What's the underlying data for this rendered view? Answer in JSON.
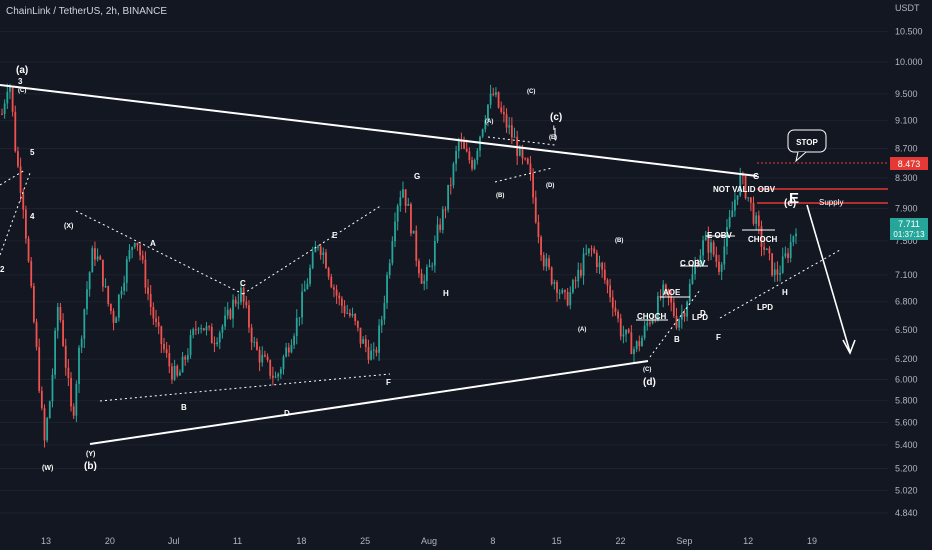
{
  "header": {
    "title": "ChainLink / TetherUS, 2h, BINANCE"
  },
  "price_axis": {
    "currency": "USDT",
    "ticks": [
      "10.500",
      "10.000",
      "9.500",
      "9.100",
      "8.700",
      "8.300",
      "7.900",
      "7.500",
      "7.100",
      "6.800",
      "6.500",
      "6.200",
      "6.000",
      "5.800",
      "5.600",
      "5.400",
      "5.200",
      "5.020",
      "4.840"
    ],
    "stop_price": "8.473",
    "current_price": "7.711",
    "countdown": "01:37:13"
  },
  "time_axis": {
    "ticks": [
      "13",
      "20",
      "Jul",
      "11",
      "18",
      "25",
      "Aug",
      "8",
      "15",
      "22",
      "Sep",
      "12",
      "19"
    ]
  },
  "colors": {
    "bg": "#131722",
    "up": "#26a69a",
    "down": "#ef5350",
    "line": "#ffffff",
    "stop": "#e53935",
    "current": "#26a69a"
  },
  "annotations": {
    "a_big": "(a)",
    "b_big": "(b)",
    "c_big": "(c)",
    "d_big": "(d)",
    "e_big": "(e)",
    "w": "(W)",
    "x": "(X)",
    "y": "(Y)",
    "n3": "3",
    "nc": "(C)",
    "n5": "5",
    "n4": "4",
    "n2": "2",
    "A1": "A",
    "B1": "B",
    "C1": "C",
    "D1": "D",
    "E1": "E",
    "F1": "F",
    "G1": "G",
    "H1": "H",
    "pA": "(A)",
    "pB": "(B)",
    "pC": "(C)",
    "pD": "(D)",
    "pE": "(E)",
    "pI": "I",
    "qA": "(A)",
    "qB": "(B)",
    "qC": "(C)",
    "choch1": "CHOCH",
    "aoe": "AOE",
    "lpd1": "LPD",
    "B2": "B",
    "D2": "D",
    "C2": "C OBV",
    "E2": "E OBV",
    "F2": "F",
    "G2": "G",
    "H2": "H",
    "choch2": "CHOCH",
    "lpd2": "LPD",
    "notvalid": "NOT VALID OBV",
    "supply": "Supply",
    "stop": "STOP",
    "bigE": "E"
  },
  "chart_data": {
    "type": "candlestick",
    "title": "ChainLink / TetherUS, 2h, BINANCE",
    "symbol": "LINKUSDT",
    "timeframe": "2h",
    "exchange": "BINANCE",
    "x_ticks": [
      "13",
      "20",
      "Jul",
      "11",
      "18",
      "25",
      "Aug",
      "8",
      "15",
      "22",
      "Sep",
      "12",
      "19"
    ],
    "ylim": [
      4.7,
      11.0
    ],
    "log_scale": true,
    "closes": [
      9.2,
      9.8,
      8.6,
      8.0,
      7.0,
      6.2,
      5.4,
      5.9,
      6.8,
      6.2,
      5.6,
      6.3,
      6.9,
      7.4,
      7.2,
      6.8,
      6.6,
      7.0,
      7.3,
      7.6,
      7.2,
      6.8,
      6.5,
      6.3,
      6.1,
      6.0,
      6.2,
      6.4,
      6.6,
      6.5,
      6.4,
      6.5,
      6.6,
      6.8,
      6.9,
      6.6,
      6.3,
      6.2,
      6.1,
      6.0,
      6.2,
      6.4,
      6.6,
      6.9,
      7.2,
      7.5,
      7.3,
      7.0,
      6.8,
      6.7,
      6.6,
      6.4,
      6.3,
      6.2,
      6.6,
      7.2,
      7.9,
      8.2,
      7.8,
      7.3,
      7.0,
      7.2,
      7.6,
      7.9,
      8.3,
      8.8,
      8.6,
      8.5,
      8.9,
      9.3,
      9.5,
      9.2,
      9.0,
      8.8,
      8.5,
      8.4,
      7.8,
      7.3,
      7.1,
      7.0,
      6.8,
      6.9,
      7.1,
      7.3,
      7.4,
      7.2,
      7.0,
      6.8,
      6.5,
      6.4,
      6.3,
      6.4,
      6.6,
      6.7,
      6.9,
      6.8,
      6.6,
      6.7,
      7.0,
      7.3,
      7.5,
      7.4,
      7.2,
      7.5,
      7.9,
      8.3,
      8.1,
      7.8,
      7.5,
      7.3,
      7.1,
      7.2,
      7.4,
      7.7
    ],
    "waves": {
      "major": [
        "(a)",
        "(b)",
        "(c)",
        "(d)",
        "(e)"
      ],
      "minor_b": [
        "(W)",
        "(X)",
        "(Y)"
      ],
      "minor_c": [
        "(A)",
        "(B)",
        "(C)",
        "(D)",
        "(E)"
      ],
      "minor_d": [
        "(A)",
        "(B)",
        "(C)"
      ],
      "letters": [
        "A",
        "B",
        "C",
        "D",
        "E",
        "F",
        "G",
        "H"
      ]
    },
    "levels": {
      "stop": 8.473,
      "current": 7.711
    }
  }
}
